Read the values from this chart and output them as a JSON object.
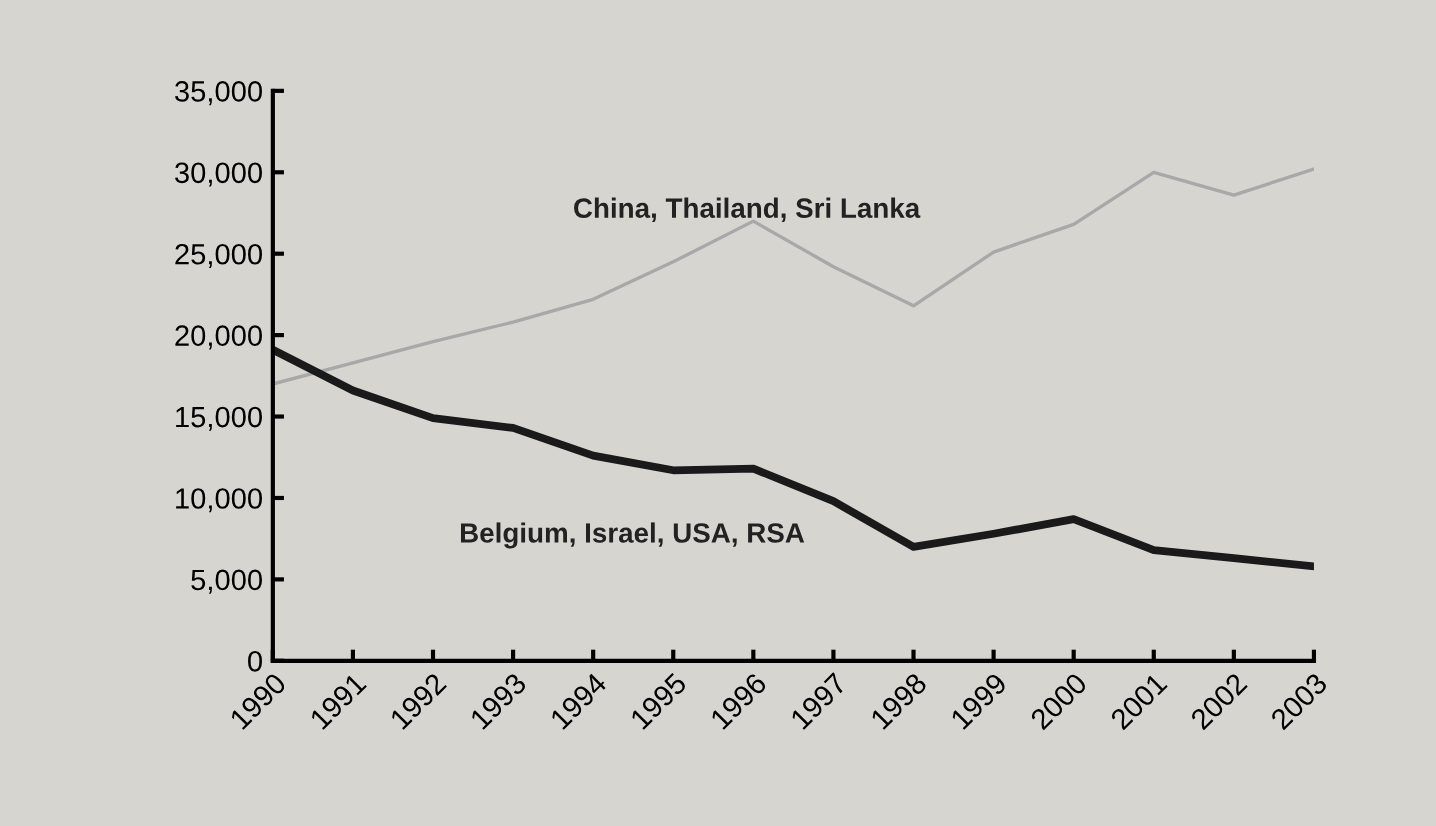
{
  "chart_data": {
    "type": "line",
    "categories": [
      "1990",
      "1991",
      "1992",
      "1993",
      "1994",
      "1995",
      "1996",
      "1997",
      "1998",
      "1999",
      "2000",
      "2001",
      "2002",
      "2003"
    ],
    "series": [
      {
        "name": "China, Thailand, Sri Lanka",
        "color": "#a8a8a8",
        "values": [
          17000,
          18300,
          19600,
          20800,
          22200,
          24500,
          27000,
          24200,
          21800,
          25100,
          26800,
          30000,
          28600,
          30200
        ]
      },
      {
        "name": "Belgium, Israel, USA, RSA",
        "color": "#1a1a1a",
        "values": [
          19100,
          16600,
          14900,
          14300,
          12600,
          11700,
          11800,
          9800,
          7000,
          7800,
          8700,
          6800,
          6300,
          5800
        ]
      }
    ],
    "ylim": [
      0,
      35000
    ],
    "yticks": [
      {
        "value": 0,
        "label": "0"
      },
      {
        "value": 5000,
        "label": "5,000"
      },
      {
        "value": 10000,
        "label": "10,000"
      },
      {
        "value": 15000,
        "label": "15,000"
      },
      {
        "value": 20000,
        "label": "20,000"
      },
      {
        "value": 25000,
        "label": "25,000"
      },
      {
        "value": 30000,
        "label": "30,000"
      },
      {
        "value": 35000,
        "label": "35,000"
      }
    ],
    "grid": false,
    "legend": false,
    "marker": "none",
    "line_style": "solid"
  }
}
